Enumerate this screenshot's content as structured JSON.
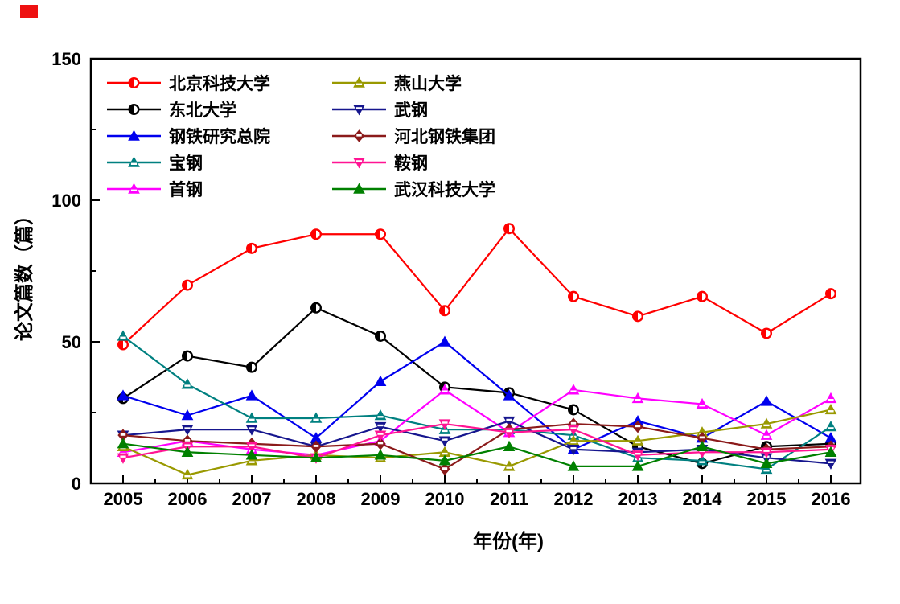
{
  "chart_data": {
    "type": "line",
    "title": "",
    "xlabel": "年份(年)",
    "ylabel": "论文篇数（篇）",
    "x": [
      2005,
      2006,
      2007,
      2008,
      2009,
      2010,
      2011,
      2012,
      2013,
      2014,
      2015,
      2016
    ],
    "xlim": [
      2004.5,
      2016.45
    ],
    "ylim": [
      0,
      150
    ],
    "y_major_ticks": [
      0,
      50,
      100,
      150
    ],
    "y_minor_ticks": [
      25,
      75,
      125
    ],
    "x_minor_ticks_between_years": true,
    "grid": false,
    "legend_position": "inside top-left, two columns",
    "series": [
      {
        "name": "北京科技大学",
        "color": "#ff0000",
        "marker": "circle-half",
        "values": [
          49,
          70,
          83,
          88,
          88,
          61,
          90,
          66,
          59,
          66,
          53,
          67
        ]
      },
      {
        "name": "东北大学",
        "color": "#000000",
        "marker": "circle-half",
        "values": [
          30,
          45,
          41,
          62,
          52,
          34,
          32,
          26,
          13,
          7,
          13,
          14
        ]
      },
      {
        "name": "钢铁研究总院",
        "color": "#0000ee",
        "marker": "triangle-filled",
        "values": [
          31,
          24,
          31,
          16,
          36,
          50,
          31,
          12,
          22,
          16,
          29,
          16
        ]
      },
      {
        "name": "宝钢",
        "color": "#008080",
        "marker": "triangle-half",
        "values": [
          52,
          35,
          23,
          23,
          24,
          19,
          19,
          17,
          9,
          8,
          5,
          20
        ]
      },
      {
        "name": "首钢",
        "color": "#ff00ff",
        "marker": "triangle-half",
        "values": [
          11,
          15,
          12,
          10,
          15,
          33,
          18,
          33,
          30,
          28,
          17,
          30
        ]
      },
      {
        "name": "燕山大学",
        "color": "#999900",
        "marker": "triangle-half",
        "values": [
          13,
          3,
          8,
          10,
          9,
          11,
          6,
          15,
          15,
          18,
          21,
          26
        ]
      },
      {
        "name": "武钢",
        "color": "#16168e",
        "marker": "triangle-down-half",
        "values": [
          17,
          19,
          19,
          13,
          20,
          15,
          22,
          12,
          11,
          12,
          9,
          7
        ]
      },
      {
        "name": "河北钢铁集团",
        "color": "#8b1a1a",
        "marker": "diamond-half",
        "values": [
          17,
          15,
          14,
          13,
          14,
          5,
          19,
          21,
          20,
          16,
          12,
          13
        ]
      },
      {
        "name": "鞍钢",
        "color": "#ff1493",
        "marker": "triangle-down-half",
        "values": [
          9,
          13,
          13,
          9,
          17,
          21,
          18,
          19,
          10,
          11,
          11,
          12
        ]
      },
      {
        "name": "武汉科技大学",
        "color": "#008000",
        "marker": "triangle-filled",
        "values": [
          14,
          11,
          10,
          9,
          10,
          8,
          13,
          6,
          6,
          13,
          7,
          11
        ]
      }
    ]
  }
}
